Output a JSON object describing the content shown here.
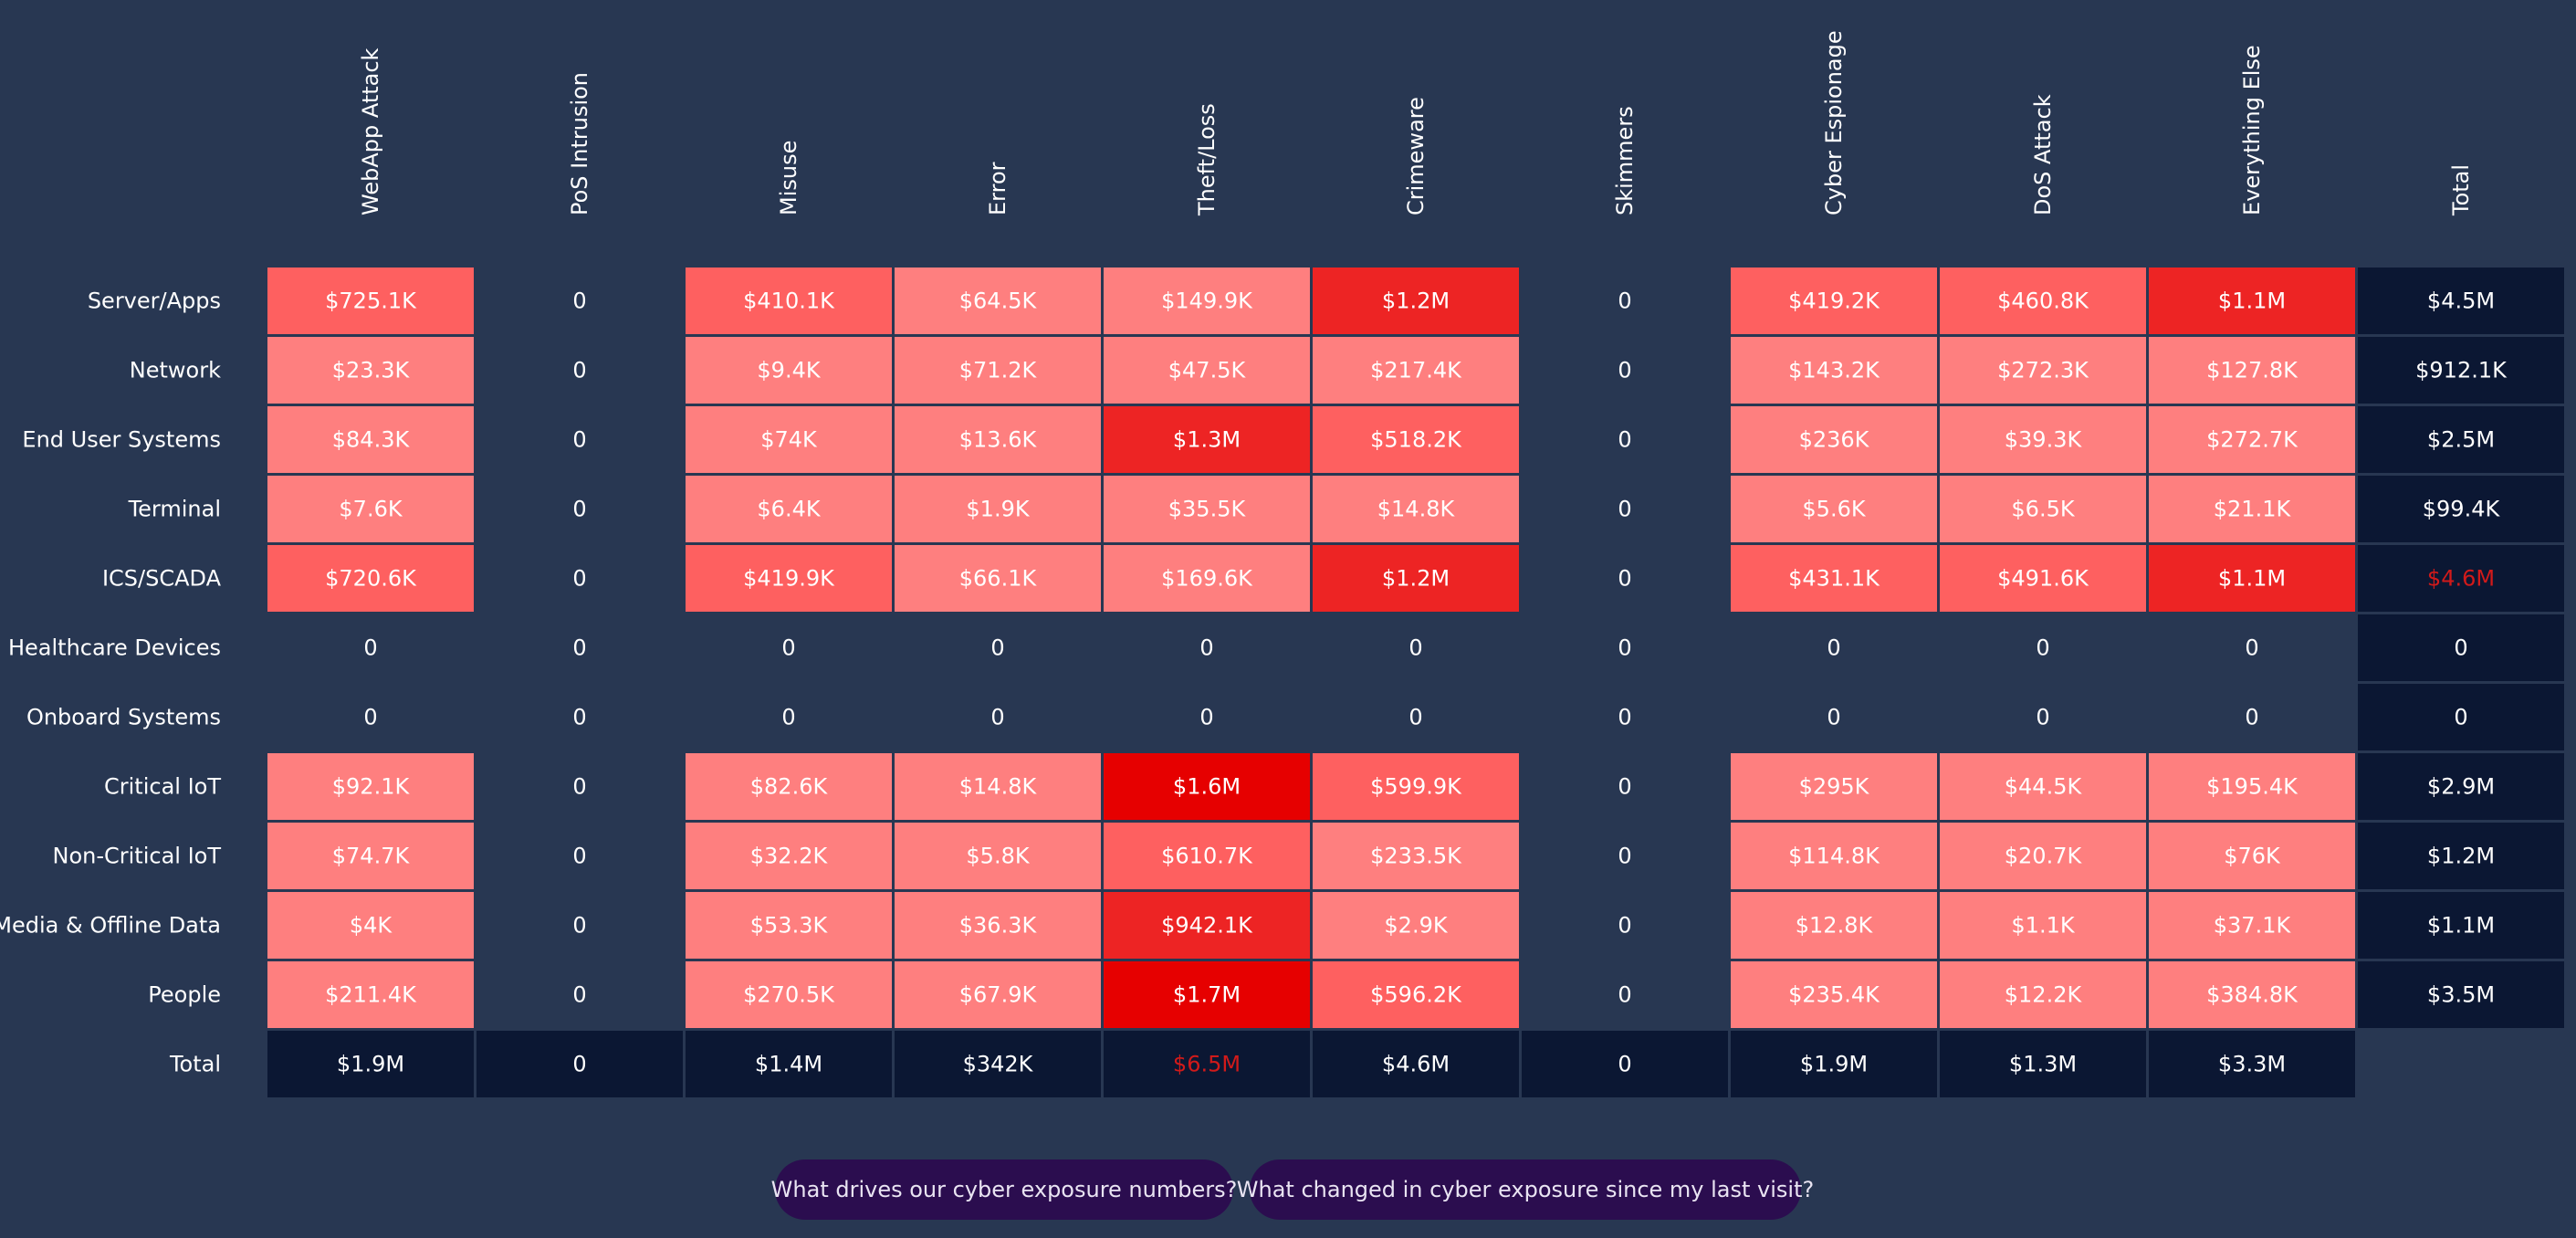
{
  "chart_data": {
    "type": "heatmap",
    "columns": [
      "WebApp Attack",
      "PoS Intrusion",
      "Misuse",
      "Error",
      "Theft/Loss",
      "Crimeware",
      "Skimmers",
      "Cyber Espionage",
      "DoS Attack",
      "Everything Else",
      "Total"
    ],
    "rows": [
      {
        "label": "Server/Apps",
        "cells": [
          "$725.1K",
          "0",
          "$410.1K",
          "$64.5K",
          "$149.9K",
          "$1.2M",
          "0",
          "$419.2K",
          "$460.8K",
          "$1.1M",
          "$4.5M"
        ],
        "values": [
          725100,
          0,
          410100,
          64500,
          149900,
          1200000,
          0,
          419200,
          460800,
          1100000,
          4500000
        ]
      },
      {
        "label": "Network",
        "cells": [
          "$23.3K",
          "0",
          "$9.4K",
          "$71.2K",
          "$47.5K",
          "$217.4K",
          "0",
          "$143.2K",
          "$272.3K",
          "$127.8K",
          "$912.1K"
        ],
        "values": [
          23300,
          0,
          9400,
          71200,
          47500,
          217400,
          0,
          143200,
          272300,
          127800,
          912100
        ]
      },
      {
        "label": "End User Systems",
        "cells": [
          "$84.3K",
          "0",
          "$74K",
          "$13.6K",
          "$1.3M",
          "$518.2K",
          "0",
          "$236K",
          "$39.3K",
          "$272.7K",
          "$2.5M"
        ],
        "values": [
          84300,
          0,
          74000,
          13600,
          1300000,
          518200,
          0,
          236000,
          39300,
          272700,
          2500000
        ]
      },
      {
        "label": "Terminal",
        "cells": [
          "$7.6K",
          "0",
          "$6.4K",
          "$1.9K",
          "$35.5K",
          "$14.8K",
          "0",
          "$5.6K",
          "$6.5K",
          "$21.1K",
          "$99.4K"
        ],
        "values": [
          7600,
          0,
          6400,
          1900,
          35500,
          14800,
          0,
          5600,
          6500,
          21100,
          99400
        ]
      },
      {
        "label": "ICS/SCADA",
        "cells": [
          "$720.6K",
          "0",
          "$419.9K",
          "$66.1K",
          "$169.6K",
          "$1.2M",
          "0",
          "$431.1K",
          "$491.6K",
          "$1.1M",
          "$4.6M"
        ],
        "values": [
          720600,
          0,
          419900,
          66100,
          169600,
          1200000,
          0,
          431100,
          491600,
          1100000,
          4600000
        ]
      },
      {
        "label": "Healthcare Devices",
        "cells": [
          "0",
          "0",
          "0",
          "0",
          "0",
          "0",
          "0",
          "0",
          "0",
          "0",
          "0"
        ],
        "values": [
          0,
          0,
          0,
          0,
          0,
          0,
          0,
          0,
          0,
          0,
          0
        ]
      },
      {
        "label": "Onboard Systems",
        "cells": [
          "0",
          "0",
          "0",
          "0",
          "0",
          "0",
          "0",
          "0",
          "0",
          "0",
          "0"
        ],
        "values": [
          0,
          0,
          0,
          0,
          0,
          0,
          0,
          0,
          0,
          0,
          0
        ]
      },
      {
        "label": "Critical IoT",
        "cells": [
          "$92.1K",
          "0",
          "$82.6K",
          "$14.8K",
          "$1.6M",
          "$599.9K",
          "0",
          "$295K",
          "$44.5K",
          "$195.4K",
          "$2.9M"
        ],
        "values": [
          92100,
          0,
          82600,
          14800,
          1600000,
          599900,
          0,
          295000,
          44500,
          195400,
          2900000
        ]
      },
      {
        "label": "Non-Critical IoT",
        "cells": [
          "$74.7K",
          "0",
          "$32.2K",
          "$5.8K",
          "$610.7K",
          "$233.5K",
          "0",
          "$114.8K",
          "$20.7K",
          "$76K",
          "$1.2M"
        ],
        "values": [
          74700,
          0,
          32200,
          5800,
          610700,
          233500,
          0,
          114800,
          20700,
          76000,
          1200000
        ]
      },
      {
        "label": "Media & Offline Data",
        "cells": [
          "$4K",
          "0",
          "$53.3K",
          "$36.3K",
          "$942.1K",
          "$2.9K",
          "0",
          "$12.8K",
          "$1.1K",
          "$37.1K",
          "$1.1M"
        ],
        "values": [
          4000,
          0,
          53300,
          36300,
          942100,
          2900,
          0,
          12800,
          1100,
          37100,
          1100000
        ]
      },
      {
        "label": "People",
        "cells": [
          "$211.4K",
          "0",
          "$270.5K",
          "$67.9K",
          "$1.7M",
          "$596.2K",
          "0",
          "$235.4K",
          "$12.2K",
          "$384.8K",
          "$3.5M"
        ],
        "values": [
          211400,
          0,
          270500,
          67900,
          1700000,
          596200,
          0,
          235400,
          12200,
          384800,
          3500000
        ]
      },
      {
        "label": "Total",
        "cells": [
          "$1.9M",
          "0",
          "$1.4M",
          "$342K",
          "$6.5M",
          "$4.6M",
          "0",
          "$1.9M",
          "$1.3M",
          "$3.3M",
          ""
        ],
        "values": [
          1900000,
          0,
          1400000,
          342000,
          6500000,
          4600000,
          0,
          1900000,
          1300000,
          3300000,
          null
        ]
      }
    ],
    "highlight_max_total": {
      "row_total": "$4.6M",
      "column_total": "$6.5M"
    },
    "color_scale": {
      "low": "#fe7f7f",
      "mid": "#fe6060",
      "high": "#ed2424",
      "max": "#e60000",
      "total_bg": "#0b1733",
      "background": "#283752",
      "highlight_text": "#d11a1a"
    }
  },
  "prompts": [
    {
      "label": "What drives our cyber exposure numbers?"
    },
    {
      "label": "What changed in cyber exposure since my last visit?"
    }
  ]
}
